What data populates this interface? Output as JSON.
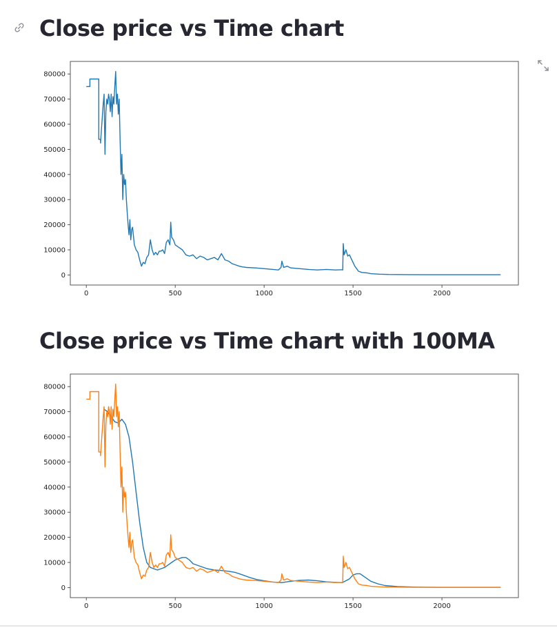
{
  "sections": [
    {
      "title": "Close price vs Time chart"
    },
    {
      "title": "Close price vs Time chart with 100MA"
    }
  ],
  "icons": {
    "anchor": "link-icon",
    "fullscreen": "expand-icon"
  },
  "colors": {
    "close_series": "#1f77b4",
    "ma_series": "#1f77b4",
    "close_series_chart2": "#ff7f0e"
  },
  "chart_data": [
    {
      "type": "line",
      "title": "",
      "xlabel": "",
      "ylabel": "",
      "xlim": [
        -90,
        2430
      ],
      "ylim": [
        -4000,
        85000
      ],
      "xticks": [
        0,
        500,
        1000,
        1500,
        2000
      ],
      "yticks": [
        0,
        10000,
        20000,
        30000,
        40000,
        50000,
        60000,
        70000,
        80000
      ],
      "grid": false,
      "series": [
        {
          "color": "#1f77b4",
          "x": [
            0,
            20,
            20,
            70,
            70,
            80,
            80,
            95,
            100,
            105,
            110,
            115,
            120,
            125,
            130,
            135,
            140,
            145,
            150,
            155,
            160,
            165,
            170,
            175,
            180,
            185,
            190,
            195,
            200,
            205,
            210,
            215,
            220,
            225,
            230,
            235,
            240,
            245,
            250,
            255,
            260,
            270,
            280,
            290,
            300,
            310,
            320,
            330,
            340,
            350,
            360,
            370,
            380,
            390,
            400,
            410,
            420,
            430,
            440,
            450,
            460,
            470,
            475,
            480,
            490,
            500,
            520,
            540,
            560,
            580,
            600,
            620,
            640,
            660,
            680,
            700,
            720,
            740,
            760,
            780,
            800,
            820,
            840,
            860,
            880,
            900,
            950,
            1000,
            1050,
            1080,
            1095,
            1100,
            1110,
            1130,
            1150,
            1200,
            1250,
            1300,
            1350,
            1400,
            1440,
            1442,
            1445,
            1450,
            1460,
            1470,
            1480,
            1490,
            1500,
            1510,
            1520,
            1530,
            1550,
            1580,
            1600,
            1650,
            1700,
            1800,
            1900,
            2000,
            2100,
            2200,
            2330
          ],
          "values": [
            75000,
            75000,
            78000,
            78000,
            54000,
            54000,
            52500,
            68000,
            72000,
            48000,
            65000,
            70000,
            68000,
            72000,
            70000,
            65000,
            72000,
            63000,
            71000,
            68000,
            75000,
            81000,
            68000,
            72000,
            64000,
            70000,
            54000,
            40000,
            48000,
            30000,
            40000,
            36000,
            38000,
            30000,
            25000,
            20000,
            16000,
            22000,
            14000,
            18000,
            19000,
            12000,
            10000,
            9000,
            6000,
            3500,
            5000,
            4500,
            7000,
            8000,
            14000,
            10000,
            8000,
            9000,
            8000,
            9500,
            9500,
            10000,
            8500,
            13000,
            14000,
            12000,
            21000,
            15000,
            14000,
            12000,
            11000,
            10000,
            8000,
            7500,
            8000,
            6500,
            7500,
            7000,
            6000,
            6500,
            7000,
            6000,
            8500,
            6000,
            5500,
            4500,
            4000,
            3500,
            3200,
            3000,
            2800,
            2500,
            2200,
            2000,
            3000,
            5500,
            3000,
            3500,
            2800,
            2500,
            2200,
            2000,
            2200,
            2000,
            2100,
            2000,
            12500,
            8000,
            10000,
            7500,
            8000,
            6500,
            5000,
            3500,
            2500,
            1500,
            1000,
            800,
            500,
            300,
            200,
            150,
            100,
            100,
            100,
            100,
            100
          ]
        }
      ]
    },
    {
      "type": "line",
      "title": "",
      "xlabel": "",
      "ylabel": "",
      "xlim": [
        -90,
        2430
      ],
      "ylim": [
        -4000,
        85000
      ],
      "xticks": [
        0,
        500,
        1000,
        1500,
        2000
      ],
      "yticks": [
        0,
        10000,
        20000,
        30000,
        40000,
        50000,
        60000,
        70000,
        80000
      ],
      "grid": false,
      "series": [
        {
          "color": "#1f77b4",
          "x": [
            99,
            120,
            140,
            160,
            180,
            200,
            220,
            240,
            260,
            280,
            300,
            320,
            340,
            360,
            380,
            400,
            420,
            440,
            460,
            480,
            500,
            520,
            540,
            560,
            580,
            600,
            640,
            680,
            720,
            760,
            800,
            840,
            880,
            920,
            960,
            1000,
            1050,
            1100,
            1150,
            1200,
            1250,
            1300,
            1350,
            1400,
            1440,
            1480,
            1500,
            1520,
            1540,
            1560,
            1580,
            1600,
            1640,
            1680,
            1750,
            1850,
            2000,
            2200,
            2330
          ],
          "values": [
            71000,
            70000,
            68000,
            66000,
            65500,
            67000,
            65000,
            60000,
            50000,
            38000,
            26000,
            16000,
            10000,
            8000,
            7500,
            7000,
            7500,
            8000,
            9000,
            10000,
            11000,
            11500,
            12000,
            12000,
            11000,
            9500,
            8500,
            7500,
            7000,
            6800,
            6500,
            6000,
            5000,
            4000,
            3200,
            2700,
            2200,
            2000,
            2500,
            2900,
            3000,
            2700,
            2300,
            2100,
            2000,
            3500,
            5000,
            5500,
            5500,
            4500,
            3500,
            2500,
            1500,
            800,
            400,
            200,
            100,
            100,
            100
          ]
        },
        {
          "color": "#ff7f0e",
          "x": [
            0,
            20,
            20,
            70,
            70,
            80,
            80,
            95,
            100,
            105,
            110,
            115,
            120,
            125,
            130,
            135,
            140,
            145,
            150,
            155,
            160,
            165,
            170,
            175,
            180,
            185,
            190,
            195,
            200,
            205,
            210,
            215,
            220,
            225,
            230,
            235,
            240,
            245,
            250,
            255,
            260,
            270,
            280,
            290,
            300,
            310,
            320,
            330,
            340,
            350,
            360,
            370,
            380,
            390,
            400,
            410,
            420,
            430,
            440,
            450,
            460,
            470,
            475,
            480,
            490,
            500,
            520,
            540,
            560,
            580,
            600,
            620,
            640,
            660,
            680,
            700,
            720,
            740,
            760,
            780,
            800,
            820,
            840,
            860,
            880,
            900,
            950,
            1000,
            1050,
            1080,
            1095,
            1100,
            1110,
            1130,
            1150,
            1200,
            1250,
            1300,
            1350,
            1400,
            1440,
            1442,
            1445,
            1450,
            1460,
            1470,
            1480,
            1490,
            1500,
            1510,
            1520,
            1530,
            1550,
            1580,
            1600,
            1650,
            1700,
            1800,
            1900,
            2000,
            2100,
            2200,
            2330
          ],
          "values": [
            75000,
            75000,
            78000,
            78000,
            54000,
            54000,
            52500,
            68000,
            72000,
            48000,
            65000,
            70000,
            68000,
            72000,
            70000,
            65000,
            72000,
            63000,
            71000,
            68000,
            75000,
            81000,
            68000,
            72000,
            64000,
            70000,
            54000,
            40000,
            48000,
            30000,
            40000,
            36000,
            38000,
            30000,
            25000,
            20000,
            16000,
            22000,
            14000,
            18000,
            19000,
            12000,
            10000,
            9000,
            6000,
            3500,
            5000,
            4500,
            7000,
            8000,
            14000,
            10000,
            8000,
            9000,
            8000,
            9500,
            9500,
            10000,
            8500,
            13000,
            14000,
            12000,
            21000,
            15000,
            14000,
            12000,
            11000,
            10000,
            8000,
            7500,
            8000,
            6500,
            7500,
            7000,
            6000,
            6500,
            7000,
            6000,
            8500,
            6000,
            5500,
            4500,
            4000,
            3500,
            3200,
            3000,
            2800,
            2500,
            2200,
            2000,
            3000,
            5500,
            3000,
            3500,
            2800,
            2500,
            2200,
            2000,
            2200,
            2000,
            2100,
            2000,
            12500,
            8000,
            10000,
            7500,
            8000,
            6500,
            5000,
            3500,
            2500,
            1500,
            1000,
            800,
            500,
            300,
            200,
            150,
            100,
            100,
            100,
            100,
            100
          ]
        }
      ]
    }
  ]
}
